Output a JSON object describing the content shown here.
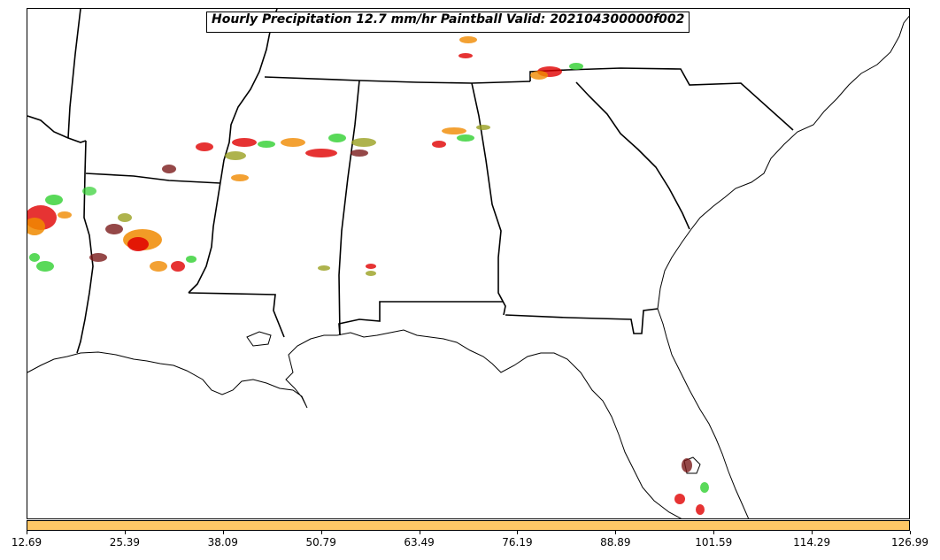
{
  "title": "Hourly Precipitation 12.7 mm/hr Paintball Valid: 202104300000f002",
  "colorbar": {
    "color": "#ffc766",
    "ticks": [
      "12.69",
      "25.39",
      "38.09",
      "50.79",
      "63.49",
      "76.19",
      "88.89",
      "101.59",
      "114.29",
      "126.99"
    ]
  },
  "paintball_colors": [
    "#e00000",
    "#f08a00",
    "#2fcf2f",
    "#7a1a1a",
    "#9aa020"
  ]
}
